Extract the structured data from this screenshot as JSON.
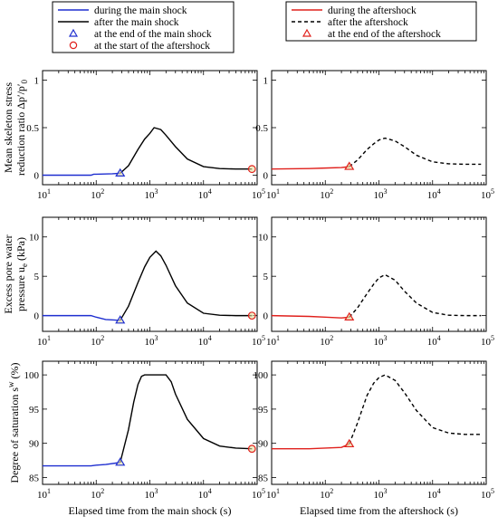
{
  "legend_left": [
    {
      "label": "during the main shock",
      "kind": "line",
      "color": "#1f2fd0",
      "dash": false
    },
    {
      "label": "after the main shock",
      "kind": "line",
      "color": "#000000",
      "dash": false
    },
    {
      "label": "at the end of the main shock",
      "kind": "triangle",
      "color": "#1f2fd0"
    },
    {
      "label": "at the start of the aftershock",
      "kind": "circle",
      "color": "#e0201c"
    }
  ],
  "legend_right": [
    {
      "label": "during the aftershock",
      "kind": "line",
      "color": "#e0201c",
      "dash": false
    },
    {
      "label": "after the aftershock",
      "kind": "line",
      "color": "#000000",
      "dash": true
    },
    {
      "label": "at the end of the aftershock",
      "kind": "triangle",
      "color": "#e0201c"
    }
  ],
  "row_ylabels": [
    "Mean skeleton stress reduction ratio Δp′/p′0",
    "Excess pore water pressure uₑ (kPa)",
    "Degree of saturation sʷ (%)"
  ],
  "row_ylabel_lines": [
    [
      "Mean skeleton stress",
      "reduction ratio Δp′/p′",
      "0"
    ],
    [
      "Excess pore water",
      "pressure u",
      "e",
      " (kPa)"
    ],
    [
      "Degree of saturation s",
      "w",
      " (%)"
    ]
  ],
  "col_xlabels": [
    "Elapsed time from the main shock (s)",
    "Elapsed time from the aftershock (s)"
  ],
  "x_tick_exponents": [
    "1",
    "2",
    "3",
    "4",
    "5"
  ],
  "x_tick_base": "10",
  "rows": [
    {
      "ylim": [
        -0.1,
        1.1
      ],
      "yticks": [
        "0",
        "0.5",
        "1"
      ],
      "ytick_values": [
        0,
        0.5,
        1
      ]
    },
    {
      "ylim": [
        -2,
        12.5
      ],
      "yticks": [
        "0",
        "5",
        "10"
      ],
      "ytick_values": [
        0,
        5,
        10
      ]
    },
    {
      "ylim": [
        84,
        102
      ],
      "yticks": [
        "85",
        "90",
        "95",
        "100"
      ],
      "ytick_values": [
        85,
        90,
        95,
        100
      ]
    }
  ],
  "chart_data": [
    {
      "type": "line",
      "xscale": "log",
      "xlim": [
        10,
        100000
      ],
      "ylim": [
        -0.1,
        1.1
      ],
      "xlabel": "",
      "ylabel": "Mean skeleton stress reduction ratio Δp′/p′0",
      "series": [
        {
          "name": "during the main shock",
          "color": "#1f2fd0",
          "x": [
            10,
            80,
            90,
            100,
            200,
            280
          ],
          "y": [
            0.0,
            0.0,
            0.01,
            0.01,
            0.015,
            0.02
          ]
        },
        {
          "name": "after the main shock",
          "color": "#000000",
          "x": [
            280,
            400,
            600,
            800,
            1000,
            1200,
            1600,
            2000,
            3000,
            5000,
            10000,
            20000,
            40000,
            80000
          ],
          "y": [
            0.02,
            0.1,
            0.27,
            0.38,
            0.44,
            0.5,
            0.48,
            0.42,
            0.3,
            0.17,
            0.09,
            0.07,
            0.065,
            0.065
          ]
        }
      ],
      "markers": [
        {
          "name": "at the end of the main shock",
          "shape": "triangle",
          "x": 280,
          "y": 0.02,
          "color": "#1f2fd0"
        },
        {
          "name": "at the start of the aftershock",
          "shape": "circle",
          "x": 80000,
          "y": 0.065,
          "color": "#e0201c"
        }
      ]
    },
    {
      "type": "line",
      "xscale": "log",
      "xlim": [
        10,
        100000
      ],
      "ylim": [
        -0.1,
        1.1
      ],
      "xlabel": "",
      "ylabel": "",
      "series": [
        {
          "name": "during the aftershock",
          "color": "#e0201c",
          "x": [
            10,
            50,
            100,
            200,
            280
          ],
          "y": [
            0.065,
            0.07,
            0.075,
            0.08,
            0.09
          ]
        },
        {
          "name": "after the aftershock",
          "color": "#000000",
          "dash": true,
          "x": [
            280,
            400,
            600,
            800,
            1000,
            1300,
            2000,
            3000,
            5000,
            10000,
            20000,
            40000,
            80000
          ],
          "y": [
            0.09,
            0.16,
            0.27,
            0.33,
            0.37,
            0.39,
            0.36,
            0.3,
            0.21,
            0.14,
            0.12,
            0.115,
            0.115
          ]
        }
      ],
      "markers": [
        {
          "name": "at the end of the aftershock",
          "shape": "triangle",
          "x": 280,
          "y": 0.09,
          "color": "#e0201c"
        }
      ]
    },
    {
      "type": "line",
      "xscale": "log",
      "xlim": [
        10,
        100000
      ],
      "ylim": [
        -2,
        12.5
      ],
      "xlabel": "",
      "ylabel": "Excess pore water pressure uₑ (kPa)",
      "series": [
        {
          "name": "during the main shock",
          "color": "#1f2fd0",
          "x": [
            10,
            80,
            100,
            150,
            280
          ],
          "y": [
            0.0,
            0.0,
            -0.2,
            -0.5,
            -0.6
          ]
        },
        {
          "name": "after the main shock",
          "color": "#000000",
          "x": [
            280,
            400,
            600,
            800,
            1000,
            1300,
            1600,
            2000,
            3000,
            5000,
            10000,
            20000,
            40000,
            80000
          ],
          "y": [
            -0.6,
            1.2,
            4.2,
            6.2,
            7.4,
            8.2,
            7.6,
            6.4,
            3.8,
            1.6,
            0.3,
            0.05,
            0.0,
            0.0
          ]
        }
      ],
      "markers": [
        {
          "name": "at the end of the main shock",
          "shape": "triangle",
          "x": 280,
          "y": -0.6,
          "color": "#1f2fd0"
        },
        {
          "name": "at the start of the aftershock",
          "shape": "circle",
          "x": 80000,
          "y": 0.0,
          "color": "#e0201c"
        }
      ]
    },
    {
      "type": "line",
      "xscale": "log",
      "xlim": [
        10,
        100000
      ],
      "ylim": [
        -2,
        12.5
      ],
      "xlabel": "",
      "ylabel": "",
      "series": [
        {
          "name": "during the aftershock",
          "color": "#e0201c",
          "x": [
            10,
            50,
            100,
            200,
            280
          ],
          "y": [
            0.0,
            -0.1,
            -0.2,
            -0.3,
            -0.2
          ]
        },
        {
          "name": "after the aftershock",
          "color": "#000000",
          "dash": true,
          "x": [
            280,
            400,
            600,
            800,
            1000,
            1300,
            2000,
            3000,
            5000,
            10000,
            20000,
            40000,
            80000
          ],
          "y": [
            -0.2,
            1.0,
            2.8,
            4.0,
            4.8,
            5.2,
            4.5,
            3.1,
            1.6,
            0.4,
            0.05,
            0.0,
            0.0
          ]
        }
      ],
      "markers": [
        {
          "name": "at the end of the aftershock",
          "shape": "triangle",
          "x": 280,
          "y": -0.2,
          "color": "#e0201c"
        }
      ]
    },
    {
      "type": "line",
      "xscale": "log",
      "xlim": [
        10,
        100000
      ],
      "ylim": [
        84,
        102
      ],
      "xlabel": "Elapsed time from the main shock (s)",
      "ylabel": "Degree of saturation sʷ (%)",
      "series": [
        {
          "name": "during the main shock",
          "color": "#1f2fd0",
          "x": [
            10,
            80,
            100,
            150,
            280
          ],
          "y": [
            86.7,
            86.7,
            86.8,
            86.9,
            87.2
          ]
        },
        {
          "name": "after the main shock",
          "color": "#000000",
          "x": [
            280,
            400,
            500,
            600,
            700,
            800,
            1000,
            2000,
            2500,
            3000,
            5000,
            10000,
            20000,
            40000,
            80000
          ],
          "y": [
            87.2,
            92.0,
            96.0,
            98.6,
            99.8,
            100.0,
            100.0,
            100.0,
            99.0,
            97.2,
            93.5,
            90.7,
            89.6,
            89.3,
            89.2
          ]
        }
      ],
      "markers": [
        {
          "name": "at the end of the main shock",
          "shape": "triangle",
          "x": 280,
          "y": 87.2,
          "color": "#1f2fd0"
        },
        {
          "name": "at the start of the aftershock",
          "shape": "circle",
          "x": 80000,
          "y": 89.2,
          "color": "#e0201c"
        }
      ]
    },
    {
      "type": "line",
      "xscale": "log",
      "xlim": [
        10,
        100000
      ],
      "ylim": [
        84,
        102
      ],
      "xlabel": "Elapsed time from the aftershock (s)",
      "ylabel": "",
      "series": [
        {
          "name": "during the aftershock",
          "color": "#e0201c",
          "x": [
            10,
            50,
            100,
            200,
            280
          ],
          "y": [
            89.2,
            89.2,
            89.3,
            89.4,
            89.9
          ]
        },
        {
          "name": "after the aftershock",
          "color": "#000000",
          "dash": true,
          "x": [
            280,
            400,
            600,
            800,
            1000,
            1300,
            2000,
            3000,
            5000,
            10000,
            20000,
            40000,
            80000
          ],
          "y": [
            89.9,
            93.0,
            97.0,
            98.8,
            99.6,
            100.0,
            99.2,
            97.4,
            94.8,
            92.3,
            91.5,
            91.3,
            91.3
          ]
        }
      ],
      "markers": [
        {
          "name": "at the end of the aftershock",
          "shape": "triangle",
          "x": 280,
          "y": 89.9,
          "color": "#e0201c"
        }
      ]
    }
  ]
}
